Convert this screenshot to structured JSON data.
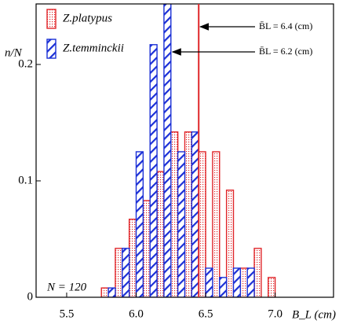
{
  "chart_data": {
    "type": "bar",
    "x_label": "B_L (cm)",
    "y_label": "n/N",
    "annotation_n": "N = 120",
    "x": [
      5.8,
      5.9,
      6.0,
      6.1,
      6.2,
      6.3,
      6.4,
      6.5,
      6.6,
      6.7,
      6.8,
      6.9,
      7.0
    ],
    "series": [
      {
        "name": "Z.platypus",
        "color": "#e0262a",
        "values": [
          0.008,
          0.042,
          0.067,
          0.083,
          0.108,
          0.142,
          0.142,
          0.125,
          0.125,
          0.092,
          0.025,
          0.042,
          0.017
        ]
      },
      {
        "name": "Z.temminckii",
        "color": "#1a2fd6",
        "values": [
          0.008,
          0.042,
          0.125,
          0.217,
          0.258,
          0.125,
          0.142,
          0.025,
          0.017,
          0.025,
          0.025,
          0,
          0
        ]
      }
    ],
    "vline": {
      "x": 6.45,
      "color": "#e0262a"
    },
    "annotations": [
      {
        "text": "B̄L = 6.4 (cm)",
        "series": 0
      },
      {
        "text": "B̄L = 6.2 (cm)",
        "series": 1
      }
    ],
    "xlim": [
      5.28,
      7.42
    ],
    "ylim": [
      0,
      0.252
    ],
    "xticks": [
      5.5,
      {
        "value": 6,
        "label": "6.0"
      },
      6.5,
      {
        "value": 7,
        "label": "7.0"
      }
    ],
    "yticks": [
      0,
      0.1,
      0.2
    ]
  }
}
